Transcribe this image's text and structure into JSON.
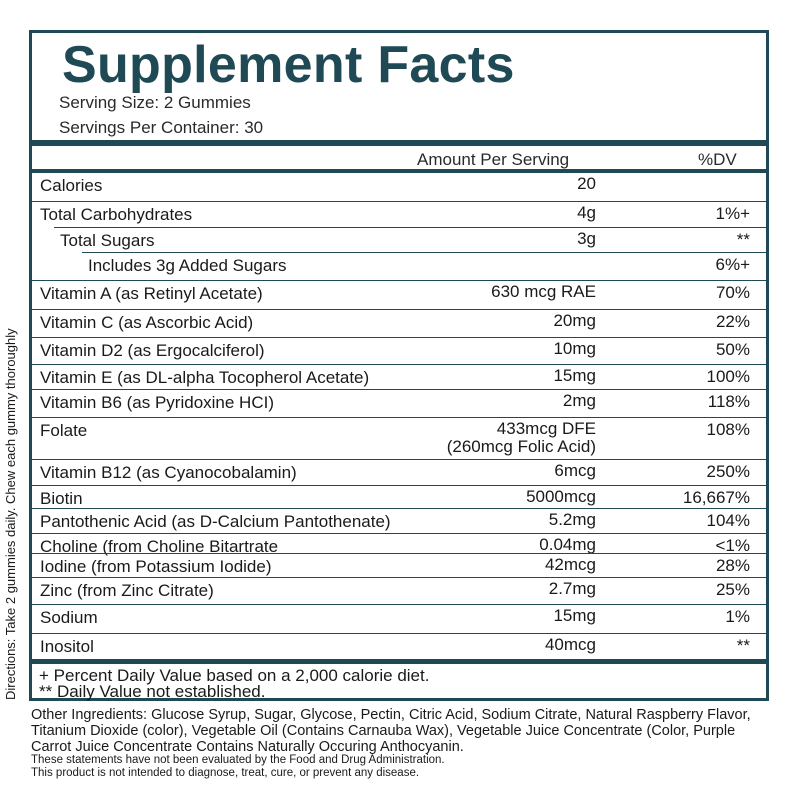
{
  "panel": {
    "title": "Supplement Facts",
    "serving_size": "Serving Size: 2 Gummies",
    "servings_per_container": "Servings Per Container: 30",
    "header_amount": "Amount Per Serving",
    "header_dv": "%DV"
  },
  "rows": [
    {
      "name": "Calories",
      "amount": "20",
      "dv": "",
      "indent": 0
    },
    {
      "name": "Total Carbohydrates",
      "amount": "4g",
      "dv": "1%+",
      "indent": 0
    },
    {
      "name": "Total Sugars",
      "amount": "3g",
      "dv": "**",
      "indent": 1
    },
    {
      "name": "Includes 3g Added Sugars",
      "amount": "",
      "dv": "6%+",
      "indent": 2
    },
    {
      "name": "Vitamin A (as Retinyl Acetate)",
      "amount": "630 mcg RAE",
      "dv": "70%",
      "indent": 0
    },
    {
      "name": "Vitamin C (as Ascorbic Acid)",
      "amount": "20mg",
      "dv": "22%",
      "indent": 0
    },
    {
      "name": "Vitamin D2 (as Ergocalciferol)",
      "amount": "10mg",
      "dv": "50%",
      "indent": 0
    },
    {
      "name": "Vitamin E (as DL-alpha Tocopherol Acetate)",
      "amount": "15mg",
      "dv": "100%",
      "indent": 0
    },
    {
      "name": "Vitamin B6 (as Pyridoxine HCI)",
      "amount": "2mg",
      "dv": "118%",
      "indent": 0
    },
    {
      "name": "Folate",
      "amount": "433mcg DFE",
      "amount2": "(260mcg Folic Acid)",
      "dv": "108%",
      "indent": 0
    },
    {
      "name": "Vitamin B12 (as Cyanocobalamin)",
      "amount": "6mcg",
      "dv": "250%",
      "indent": 0
    },
    {
      "name": "Biotin",
      "amount": "5000mcg",
      "dv": "16,667%",
      "indent": 0
    },
    {
      "name": "Pantothenic Acid (as D-Calcium Pantothenate)",
      "amount": "5.2mg",
      "dv": "104%",
      "indent": 0
    },
    {
      "name": "Choline (from Choline Bitartrate",
      "amount": "0.04mg",
      "dv": "<1%",
      "indent": 0
    },
    {
      "name": "Iodine (from Potassium Iodide)",
      "amount": "42mcg",
      "dv": "28%",
      "indent": 0
    },
    {
      "name": "Zinc (from Zinc Citrate)",
      "amount": "2.7mg",
      "dv": "25%",
      "indent": 0
    },
    {
      "name": "Sodium",
      "amount": "15mg",
      "dv": "1%",
      "indent": 0
    },
    {
      "name": "Inositol",
      "amount": "40mcg",
      "dv": "**",
      "indent": 0
    }
  ],
  "footnotes": {
    "percent_dv": "+ Percent Daily Value based on a 2,000 calorie diet.",
    "not_established": "** Daily Value not established."
  },
  "directions": "Directions: Take 2 gummies daily. Chew each gummy thoroughly",
  "other_ingredients": "Other Ingredients: Glucose Syrup, Sugar, Glycose, Pectin, Citric Acid, Sodium Citrate, Natural Raspberry Flavor, Titanium Dioxide (color), Vegetable Oil (Contains Carnauba Wax), Vegetable Juice Concentrate (Color, Purple Carrot Juice Concentrate Contains Naturally Occuring Anthocyanin.",
  "disclaimer": {
    "line1": "These statements have not been evaluated by the Food and Drug Administration.",
    "line2": "This product is not intended to diagnose, treat, cure, or prevent any disease."
  },
  "colors": {
    "accent": "#1f4a55",
    "text": "#1a1a1a"
  }
}
